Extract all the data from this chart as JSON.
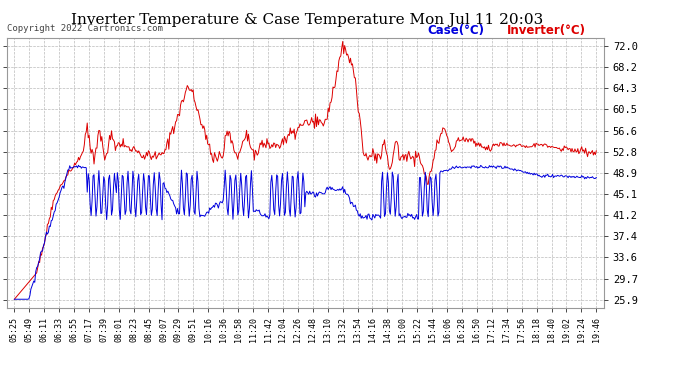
{
  "title": "Inverter Temperature & Case Temperature Mon Jul 11 20:03",
  "copyright": "Copyright 2022 Cartronics.com",
  "legend_case": "Case(°C)",
  "legend_inverter": "Inverter(°C)",
  "yticks": [
    25.9,
    29.7,
    33.6,
    37.4,
    41.2,
    45.1,
    48.9,
    52.8,
    56.6,
    60.5,
    64.3,
    68.2,
    72.0
  ],
  "ylim": [
    24.5,
    73.5
  ],
  "bg_color": "#ffffff",
  "grid_color": "#bbbbbb",
  "case_color": "#0000dd",
  "inverter_color": "#dd0000",
  "title_color": "#000000",
  "copyright_color": "#444444",
  "xtick_fontsize": 6.0,
  "ytick_fontsize": 7.5,
  "title_fontsize": 11,
  "xtick_labels": [
    "05:25",
    "05:49",
    "06:11",
    "06:33",
    "06:55",
    "07:17",
    "07:39",
    "08:01",
    "08:23",
    "08:45",
    "09:07",
    "09:29",
    "09:51",
    "10:16",
    "10:36",
    "10:58",
    "11:20",
    "11:42",
    "12:04",
    "12:26",
    "12:48",
    "13:10",
    "13:32",
    "13:54",
    "14:16",
    "14:38",
    "15:00",
    "15:22",
    "15:44",
    "16:06",
    "16:28",
    "16:50",
    "17:12",
    "17:34",
    "17:56",
    "18:18",
    "18:40",
    "19:02",
    "19:24",
    "19:46"
  ]
}
